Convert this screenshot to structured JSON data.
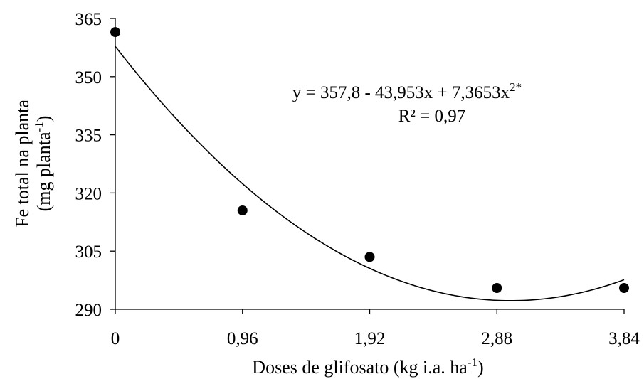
{
  "chart_data": {
    "type": "scatter",
    "title": "",
    "xlabel": {
      "main": "Doses de glifosato (kg i.a. ha",
      "sup": "-1",
      "end": ")"
    },
    "ylabel": {
      "line1": "Fe total na planta",
      "line2_main": "(mg planta",
      "line2_sup": "-1",
      "line2_end": ")"
    },
    "x_ticks": [
      "0",
      "0,96",
      "1,92",
      "2,88",
      "3,84"
    ],
    "y_ticks": [
      "290",
      "305",
      "320",
      "335",
      "350",
      "365"
    ],
    "xlim": [
      0,
      3.84
    ],
    "ylim": [
      290,
      365
    ],
    "grid": false,
    "series": [
      {
        "x": [
          0,
          0.96,
          1.92,
          2.88,
          3.84
        ],
        "y": [
          361.5,
          315.5,
          303.5,
          295.5,
          295.5
        ],
        "marker": "circle",
        "color": "#000000"
      }
    ],
    "trendline": {
      "type": "quadratic",
      "coefficients": [
        357.8,
        -43.953,
        7.3653
      ],
      "color": "#000000"
    },
    "annotation": {
      "equation_main": "y = 357,8 - 43,953x + 7,3653x",
      "equation_sup": "2*",
      "r2": "R² = 0,97"
    }
  }
}
